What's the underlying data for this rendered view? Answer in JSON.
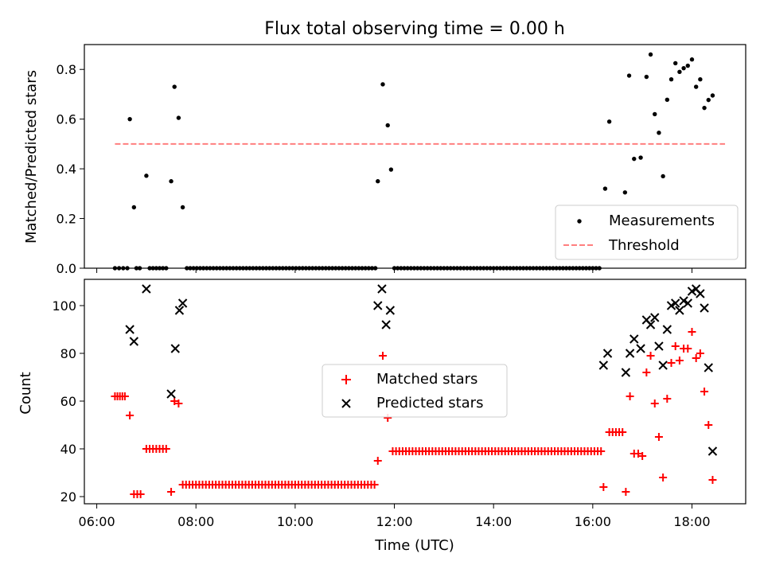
{
  "chart_data": [
    {
      "type": "scatter",
      "title": "Flux total observing time = 0.00 h",
      "xlabel": "",
      "ylabel": "Matched/Predicted stars",
      "ylim": [
        0,
        0.9
      ],
      "yticks": [
        0.0,
        0.2,
        0.4,
        0.6,
        0.8
      ],
      "ytick_labels": [
        "0.0",
        "0.2",
        "0.4",
        "0.6",
        "0.8"
      ],
      "legend_placement": "lower-right",
      "series": [
        {
          "name": "Measurements",
          "marker": "dot",
          "color": "#000000",
          "points": [
            [
              "06:22",
              0
            ],
            [
              "06:27",
              0
            ],
            [
              "06:32",
              0
            ],
            [
              "06:37",
              0
            ],
            [
              "06:40",
              0.6
            ],
            [
              "06:45",
              0.245
            ],
            [
              "06:48",
              0
            ],
            [
              "06:52",
              0
            ],
            [
              "07:00",
              0.372
            ],
            [
              "07:04",
              0
            ],
            [
              "07:08",
              0
            ],
            [
              "07:12",
              0
            ],
            [
              "07:16",
              0
            ],
            [
              "07:20",
              0
            ],
            [
              "07:24",
              0
            ],
            [
              "07:30",
              0.35
            ],
            [
              "07:34",
              0.73
            ],
            [
              "07:39",
              0.605
            ],
            [
              "07:44",
              0.245
            ],
            [
              "07:49",
              0
            ],
            [
              "11:40",
              0.35
            ],
            [
              "11:46",
              0.74
            ],
            [
              "11:52",
              0.575
            ],
            [
              "11:56",
              0.397
            ],
            [
              "16:15",
              0.32
            ],
            [
              "16:20",
              0.59
            ],
            [
              "16:39",
              0.305
            ],
            [
              "16:44",
              0.775
            ],
            [
              "16:50",
              0.44
            ],
            [
              "16:58",
              0.445
            ],
            [
              "17:05",
              0.77
            ],
            [
              "17:10",
              0.86
            ],
            [
              "17:15",
              0.62
            ],
            [
              "17:20",
              0.545
            ],
            [
              "17:25",
              0.37
            ],
            [
              "17:30",
              0.678
            ],
            [
              "17:35",
              0.76
            ],
            [
              "17:40",
              0.825
            ],
            [
              "17:45",
              0.79
            ],
            [
              "17:50",
              0.805
            ],
            [
              "17:55",
              0.815
            ],
            [
              "18:00",
              0.84
            ],
            [
              "18:05",
              0.73
            ],
            [
              "18:10",
              0.76
            ],
            [
              "18:15",
              0.645
            ],
            [
              "18:20",
              0.677
            ],
            [
              "18:25",
              0.695
            ]
          ],
          "zero_runs": [
            {
              "start": "07:53",
              "end": "11:37",
              "step_min": 4
            },
            {
              "start": "12:00",
              "end": "16:08",
              "step_min": 4
            }
          ]
        },
        {
          "name": "Threshold",
          "line_style": "dashed",
          "color": "#ff7f7f",
          "x": [
            "06:22",
            "18:40"
          ],
          "values": [
            0.5,
            0.5
          ]
        }
      ]
    },
    {
      "type": "scatter",
      "xlabel": "Time (UTC)",
      "ylabel": "Count",
      "xlim": [
        "05:45",
        "19:05"
      ],
      "ylim": [
        17,
        111
      ],
      "xticks": [
        "06:00",
        "08:00",
        "10:00",
        "12:00",
        "14:00",
        "16:00",
        "18:00"
      ],
      "yticks": [
        20,
        40,
        60,
        80,
        100
      ],
      "ytick_labels": [
        "20",
        "40",
        "60",
        "80",
        "100"
      ],
      "legend_placement": "center",
      "series": [
        {
          "name": "Matched stars",
          "marker": "plus",
          "color": "#ff0000",
          "points": [
            [
              "06:22",
              62
            ],
            [
              "06:25",
              62
            ],
            [
              "06:28",
              62
            ],
            [
              "06:31",
              62
            ],
            [
              "06:34",
              62
            ],
            [
              "06:40",
              54
            ],
            [
              "06:45",
              21
            ],
            [
              "06:49",
              21
            ],
            [
              "06:53",
              21
            ],
            [
              "07:00",
              40
            ],
            [
              "07:04",
              40
            ],
            [
              "07:08",
              40
            ],
            [
              "07:12",
              40
            ],
            [
              "07:16",
              40
            ],
            [
              "07:20",
              40
            ],
            [
              "07:24",
              40
            ],
            [
              "07:30",
              22
            ],
            [
              "07:34",
              60
            ],
            [
              "07:39",
              59
            ],
            [
              "11:40",
              35
            ],
            [
              "11:46",
              79
            ],
            [
              "11:52",
              53
            ],
            [
              "16:13",
              24
            ],
            [
              "16:20",
              47
            ],
            [
              "16:24",
              47
            ],
            [
              "16:28",
              47
            ],
            [
              "16:32",
              47
            ],
            [
              "16:36",
              47
            ],
            [
              "16:40",
              22
            ],
            [
              "16:45",
              62
            ],
            [
              "16:50",
              38
            ],
            [
              "16:55",
              38
            ],
            [
              "17:00",
              37
            ],
            [
              "17:05",
              72
            ],
            [
              "17:10",
              79
            ],
            [
              "17:15",
              59
            ],
            [
              "17:20",
              45
            ],
            [
              "17:25",
              28
            ],
            [
              "17:30",
              61
            ],
            [
              "17:35",
              76
            ],
            [
              "17:40",
              83
            ],
            [
              "17:45",
              77
            ],
            [
              "17:50",
              82
            ],
            [
              "17:55",
              82
            ],
            [
              "18:00",
              89
            ],
            [
              "18:05",
              78
            ],
            [
              "18:10",
              80
            ],
            [
              "18:15",
              64
            ],
            [
              "18:20",
              50
            ],
            [
              "18:25",
              27
            ]
          ],
          "constant_runs": [
            {
              "start": "07:44",
              "end": "11:37",
              "step_min": 4,
              "value": 25
            },
            {
              "start": "11:58",
              "end": "16:10",
              "step_min": 4,
              "value": 39
            }
          ]
        },
        {
          "name": "Predicted stars",
          "marker": "x",
          "color": "#000000",
          "points": [
            [
              "06:40",
              90
            ],
            [
              "06:45",
              85
            ],
            [
              "07:00",
              107
            ],
            [
              "07:30",
              63
            ],
            [
              "07:35",
              82
            ],
            [
              "07:40",
              98
            ],
            [
              "07:44",
              101
            ],
            [
              "11:40",
              100
            ],
            [
              "11:45",
              107
            ],
            [
              "11:50",
              92
            ],
            [
              "11:55",
              98
            ],
            [
              "16:13",
              75
            ],
            [
              "16:18",
              80
            ],
            [
              "16:40",
              72
            ],
            [
              "16:45",
              80
            ],
            [
              "16:50",
              86
            ],
            [
              "16:58",
              82
            ],
            [
              "17:05",
              94
            ],
            [
              "17:10",
              92
            ],
            [
              "17:15",
              95
            ],
            [
              "17:20",
              83
            ],
            [
              "17:25",
              75
            ],
            [
              "17:30",
              90
            ],
            [
              "17:35",
              100
            ],
            [
              "17:40",
              101
            ],
            [
              "17:45",
              98
            ],
            [
              "17:50",
              102
            ],
            [
              "17:55",
              101
            ],
            [
              "18:00",
              106
            ],
            [
              "18:05",
              107
            ],
            [
              "18:10",
              105
            ],
            [
              "18:15",
              99
            ],
            [
              "18:20",
              74
            ],
            [
              "18:25",
              39
            ]
          ]
        }
      ]
    }
  ]
}
